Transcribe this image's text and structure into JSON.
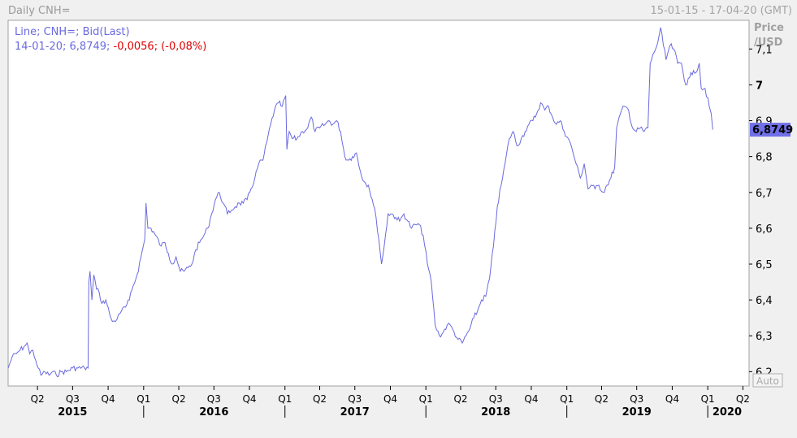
{
  "header": {
    "chart_title": "Daily CNH=",
    "date_range": "15-01-15 - 17-04-20 (GMT)"
  },
  "legend": {
    "series_desc": "Line; CNH=; Bid(Last)",
    "last_point": "14-01-20; 6,8749;",
    "change": " -0,0056; (-0,08%)"
  },
  "axis": {
    "y_title_1": "Price",
    "y_title_2": "/USD",
    "auto_label": "Auto",
    "last_value_label": "6,8749"
  },
  "colors": {
    "line": "#6a6ae0",
    "legend_text": "#6a6ae0",
    "change_text": "#e00000",
    "last_value_bg": "#7070e8"
  },
  "chart_data": {
    "type": "line",
    "title": "Daily CNH=",
    "ylabel": "Price /USD",
    "ylim": [
      6.16,
      7.18
    ],
    "y_ticks": [
      {
        "v": 6.2,
        "label": "6,2"
      },
      {
        "v": 6.3,
        "label": "6,3"
      },
      {
        "v": 6.4,
        "label": "6,4"
      },
      {
        "v": 6.5,
        "label": "6,5"
      },
      {
        "v": 6.6,
        "label": "6,6"
      },
      {
        "v": 6.7,
        "label": "6,7"
      },
      {
        "v": 6.8,
        "label": "6,8"
      },
      {
        "v": 6.9,
        "label": "6,9"
      },
      {
        "v": 7.0,
        "label": "7"
      },
      {
        "v": 7.1,
        "label": "7,1"
      }
    ],
    "x_quarter_ticks": [
      {
        "t": "2015-04-01",
        "label": "Q2"
      },
      {
        "t": "2015-07-01",
        "label": "Q3"
      },
      {
        "t": "2015-10-01",
        "label": "Q4"
      },
      {
        "t": "2016-01-01",
        "label": "Q1"
      },
      {
        "t": "2016-04-01",
        "label": "Q2"
      },
      {
        "t": "2016-07-01",
        "label": "Q3"
      },
      {
        "t": "2016-10-01",
        "label": "Q4"
      },
      {
        "t": "2017-01-01",
        "label": "Q1"
      },
      {
        "t": "2017-04-01",
        "label": "Q2"
      },
      {
        "t": "2017-07-01",
        "label": "Q3"
      },
      {
        "t": "2017-10-01",
        "label": "Q4"
      },
      {
        "t": "2018-01-01",
        "label": "Q1"
      },
      {
        "t": "2018-04-01",
        "label": "Q2"
      },
      {
        "t": "2018-07-01",
        "label": "Q3"
      },
      {
        "t": "2018-10-01",
        "label": "Q4"
      },
      {
        "t": "2019-01-01",
        "label": "Q1"
      },
      {
        "t": "2019-04-01",
        "label": "Q2"
      },
      {
        "t": "2019-07-01",
        "label": "Q3"
      },
      {
        "t": "2019-10-01",
        "label": "Q4"
      },
      {
        "t": "2020-01-01",
        "label": "Q1"
      },
      {
        "t": "2020-04-01",
        "label": "Q2"
      }
    ],
    "x_year_labels": [
      {
        "t": "2015-07-01",
        "label": "2015"
      },
      {
        "t": "2016-07-01",
        "label": "2016"
      },
      {
        "t": "2017-07-01",
        "label": "2017"
      },
      {
        "t": "2018-07-01",
        "label": "2018"
      },
      {
        "t": "2019-07-01",
        "label": "2019"
      },
      {
        "t": "2020-02-20",
        "label": "2020"
      }
    ],
    "x_range": [
      "2015-01-15",
      "2020-04-17"
    ],
    "series": [
      {
        "values": [
          [
            "2015-01-15",
            6.21
          ],
          [
            "2015-01-25",
            6.24
          ],
          [
            "2015-02-05",
            6.25
          ],
          [
            "2015-02-15",
            6.26
          ],
          [
            "2015-02-25",
            6.27
          ],
          [
            "2015-03-05",
            6.28
          ],
          [
            "2015-03-12",
            6.25
          ],
          [
            "2015-03-20",
            6.26
          ],
          [
            "2015-03-28",
            6.23
          ],
          [
            "2015-04-03",
            6.21
          ],
          [
            "2015-04-10",
            6.19
          ],
          [
            "2015-04-20",
            6.2
          ],
          [
            "2015-05-01",
            6.19
          ],
          [
            "2015-05-10",
            6.2
          ],
          [
            "2015-05-20",
            6.19
          ],
          [
            "2015-06-01",
            6.2
          ],
          [
            "2015-06-15",
            6.2
          ],
          [
            "2015-07-01",
            6.21
          ],
          [
            "2015-07-15",
            6.21
          ],
          [
            "2015-08-01",
            6.21
          ],
          [
            "2015-08-10",
            6.21
          ],
          [
            "2015-08-12",
            6.45
          ],
          [
            "2015-08-15",
            6.48
          ],
          [
            "2015-08-20",
            6.4
          ],
          [
            "2015-08-25",
            6.47
          ],
          [
            "2015-09-01",
            6.43
          ],
          [
            "2015-09-08",
            6.42
          ],
          [
            "2015-09-15",
            6.39
          ],
          [
            "2015-09-25",
            6.4
          ],
          [
            "2015-10-05",
            6.36
          ],
          [
            "2015-10-12",
            6.34
          ],
          [
            "2015-10-20",
            6.34
          ],
          [
            "2015-10-28",
            6.36
          ],
          [
            "2015-11-05",
            6.37
          ],
          [
            "2015-11-15",
            6.38
          ],
          [
            "2015-11-25",
            6.4
          ],
          [
            "2015-12-05",
            6.44
          ],
          [
            "2015-12-15",
            6.47
          ],
          [
            "2015-12-25",
            6.52
          ],
          [
            "2016-01-04",
            6.57
          ],
          [
            "2016-01-07",
            6.67
          ],
          [
            "2016-01-12",
            6.6
          ],
          [
            "2016-01-20",
            6.6
          ],
          [
            "2016-02-01",
            6.58
          ],
          [
            "2016-02-15",
            6.55
          ],
          [
            "2016-02-25",
            6.56
          ],
          [
            "2016-03-05",
            6.53
          ],
          [
            "2016-03-15",
            6.5
          ],
          [
            "2016-03-25",
            6.52
          ],
          [
            "2016-04-05",
            6.48
          ],
          [
            "2016-04-15",
            6.48
          ],
          [
            "2016-04-25",
            6.49
          ],
          [
            "2016-05-05",
            6.5
          ],
          [
            "2016-05-15",
            6.54
          ],
          [
            "2016-05-25",
            6.56
          ],
          [
            "2016-06-05",
            6.58
          ],
          [
            "2016-06-15",
            6.6
          ],
          [
            "2016-06-25",
            6.64
          ],
          [
            "2016-07-05",
            6.68
          ],
          [
            "2016-07-15",
            6.7
          ],
          [
            "2016-07-25",
            6.67
          ],
          [
            "2016-08-05",
            6.64
          ],
          [
            "2016-08-15",
            6.65
          ],
          [
            "2016-08-25",
            6.66
          ],
          [
            "2016-09-05",
            6.67
          ],
          [
            "2016-09-15",
            6.67
          ],
          [
            "2016-09-25",
            6.68
          ],
          [
            "2016-10-05",
            6.71
          ],
          [
            "2016-10-15",
            6.74
          ],
          [
            "2016-10-25",
            6.78
          ],
          [
            "2016-11-05",
            6.79
          ],
          [
            "2016-11-15",
            6.84
          ],
          [
            "2016-11-25",
            6.89
          ],
          [
            "2016-12-05",
            6.93
          ],
          [
            "2016-12-15",
            6.95
          ],
          [
            "2016-12-25",
            6.94
          ],
          [
            "2017-01-03",
            6.97
          ],
          [
            "2017-01-06",
            6.82
          ],
          [
            "2017-01-12",
            6.87
          ],
          [
            "2017-01-20",
            6.85
          ],
          [
            "2017-02-01",
            6.85
          ],
          [
            "2017-02-15",
            6.87
          ],
          [
            "2017-03-01",
            6.88
          ],
          [
            "2017-03-10",
            6.91
          ],
          [
            "2017-03-20",
            6.87
          ],
          [
            "2017-04-01",
            6.88
          ],
          [
            "2017-04-15",
            6.89
          ],
          [
            "2017-04-25",
            6.9
          ],
          [
            "2017-05-05",
            6.89
          ],
          [
            "2017-05-15",
            6.9
          ],
          [
            "2017-05-25",
            6.87
          ],
          [
            "2017-06-05",
            6.8
          ],
          [
            "2017-06-15",
            6.79
          ],
          [
            "2017-06-25",
            6.8
          ],
          [
            "2017-07-05",
            6.81
          ],
          [
            "2017-07-15",
            6.76
          ],
          [
            "2017-07-25",
            6.73
          ],
          [
            "2017-08-05",
            6.72
          ],
          [
            "2017-08-15",
            6.68
          ],
          [
            "2017-08-25",
            6.63
          ],
          [
            "2017-09-01",
            6.57
          ],
          [
            "2017-09-08",
            6.5
          ],
          [
            "2017-09-15",
            6.55
          ],
          [
            "2017-09-25",
            6.64
          ],
          [
            "2017-10-05",
            6.64
          ],
          [
            "2017-10-15",
            6.63
          ],
          [
            "2017-10-25",
            6.62
          ],
          [
            "2017-11-05",
            6.64
          ],
          [
            "2017-11-15",
            6.62
          ],
          [
            "2017-11-25",
            6.6
          ],
          [
            "2017-12-05",
            6.61
          ],
          [
            "2017-12-15",
            6.61
          ],
          [
            "2017-12-25",
            6.58
          ],
          [
            "2018-01-05",
            6.5
          ],
          [
            "2018-01-15",
            6.45
          ],
          [
            "2018-01-25",
            6.33
          ],
          [
            "2018-02-05",
            6.3
          ],
          [
            "2018-02-15",
            6.31
          ],
          [
            "2018-02-25",
            6.33
          ],
          [
            "2018-03-05",
            6.33
          ],
          [
            "2018-03-15",
            6.31
          ],
          [
            "2018-03-25",
            6.29
          ],
          [
            "2018-04-05",
            6.28
          ],
          [
            "2018-04-15",
            6.3
          ],
          [
            "2018-04-25",
            6.32
          ],
          [
            "2018-05-05",
            6.35
          ],
          [
            "2018-05-15",
            6.37
          ],
          [
            "2018-05-25",
            6.4
          ],
          [
            "2018-06-05",
            6.41
          ],
          [
            "2018-06-15",
            6.46
          ],
          [
            "2018-06-25",
            6.55
          ],
          [
            "2018-07-05",
            6.66
          ],
          [
            "2018-07-15",
            6.72
          ],
          [
            "2018-07-25",
            6.78
          ],
          [
            "2018-08-05",
            6.85
          ],
          [
            "2018-08-15",
            6.87
          ],
          [
            "2018-08-25",
            6.83
          ],
          [
            "2018-09-05",
            6.85
          ],
          [
            "2018-09-15",
            6.87
          ],
          [
            "2018-09-25",
            6.89
          ],
          [
            "2018-10-05",
            6.9
          ],
          [
            "2018-10-15",
            6.92
          ],
          [
            "2018-10-25",
            6.95
          ],
          [
            "2018-11-05",
            6.93
          ],
          [
            "2018-11-15",
            6.94
          ],
          [
            "2018-11-25",
            6.91
          ],
          [
            "2018-12-05",
            6.89
          ],
          [
            "2018-12-15",
            6.9
          ],
          [
            "2018-12-25",
            6.87
          ],
          [
            "2019-01-05",
            6.85
          ],
          [
            "2019-01-15",
            6.82
          ],
          [
            "2019-01-25",
            6.78
          ],
          [
            "2019-02-05",
            6.74
          ],
          [
            "2019-02-15",
            6.78
          ],
          [
            "2019-02-25",
            6.71
          ],
          [
            "2019-03-05",
            6.72
          ],
          [
            "2019-03-15",
            6.71
          ],
          [
            "2019-03-25",
            6.72
          ],
          [
            "2019-04-05",
            6.7
          ],
          [
            "2019-04-15",
            6.72
          ],
          [
            "2019-04-25",
            6.74
          ],
          [
            "2019-05-05",
            6.77
          ],
          [
            "2019-05-10",
            6.88
          ],
          [
            "2019-05-20",
            6.92
          ],
          [
            "2019-05-30",
            6.94
          ],
          [
            "2019-06-10",
            6.93
          ],
          [
            "2019-06-20",
            6.88
          ],
          [
            "2019-06-30",
            6.87
          ],
          [
            "2019-07-10",
            6.88
          ],
          [
            "2019-07-20",
            6.87
          ],
          [
            "2019-07-30",
            6.88
          ],
          [
            "2019-08-05",
            7.06
          ],
          [
            "2019-08-15",
            7.09
          ],
          [
            "2019-08-25",
            7.12
          ],
          [
            "2019-09-01",
            7.16
          ],
          [
            "2019-09-08",
            7.11
          ],
          [
            "2019-09-15",
            7.07
          ],
          [
            "2019-09-25",
            7.11
          ],
          [
            "2019-10-05",
            7.1
          ],
          [
            "2019-10-15",
            7.06
          ],
          [
            "2019-10-25",
            7.06
          ],
          [
            "2019-11-05",
            7.0
          ],
          [
            "2019-11-15",
            7.02
          ],
          [
            "2019-11-25",
            7.04
          ],
          [
            "2019-12-05",
            7.04
          ],
          [
            "2019-12-10",
            7.06
          ],
          [
            "2019-12-15",
            6.99
          ],
          [
            "2019-12-25",
            6.99
          ],
          [
            "2020-01-05",
            6.94
          ],
          [
            "2020-01-10",
            6.92
          ],
          [
            "2020-01-14",
            6.8749
          ]
        ]
      }
    ]
  }
}
